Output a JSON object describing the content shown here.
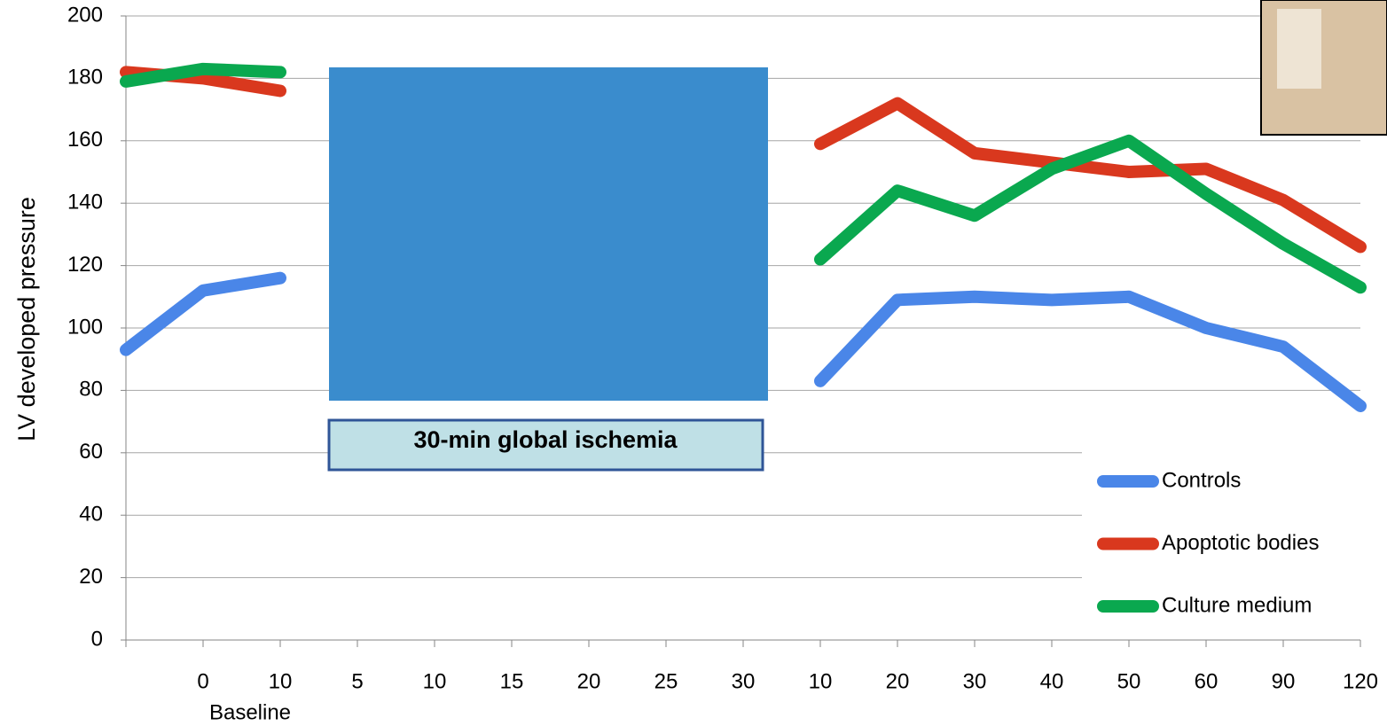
{
  "chart_data": {
    "type": "line",
    "y_label": "LV developed pressure",
    "annotation": "30-min global ischemia",
    "x_group_label": "Baseline",
    "categories": [
      null,
      "0",
      "10",
      "5",
      "10",
      "15",
      "20",
      "25",
      "30",
      "10",
      "20",
      "30",
      "40",
      "50",
      "60",
      "90",
      "120"
    ],
    "series": [
      {
        "name": "Controls",
        "color": "#4a86e8",
        "values": [
          93,
          112,
          116,
          null,
          null,
          null,
          null,
          null,
          null,
          83,
          109,
          110,
          109,
          110,
          100,
          94,
          75
        ]
      },
      {
        "name": "Apoptotic bodies",
        "color": "#d9381e",
        "values": [
          182,
          180,
          176,
          null,
          null,
          null,
          null,
          null,
          null,
          159,
          172,
          156,
          153,
          150,
          151,
          141,
          126
        ]
      },
      {
        "name": "Culture medium",
        "color": "#0aa84f",
        "values": [
          179,
          183,
          182,
          null,
          null,
          null,
          null,
          null,
          null,
          122,
          144,
          136,
          151,
          160,
          143,
          127,
          113
        ]
      }
    ],
    "ylim": [
      0,
      200
    ],
    "yticks": [
      0,
      20,
      40,
      60,
      80,
      100,
      120,
      140,
      160,
      180,
      200
    ],
    "grid": true,
    "legend": "lower right"
  }
}
